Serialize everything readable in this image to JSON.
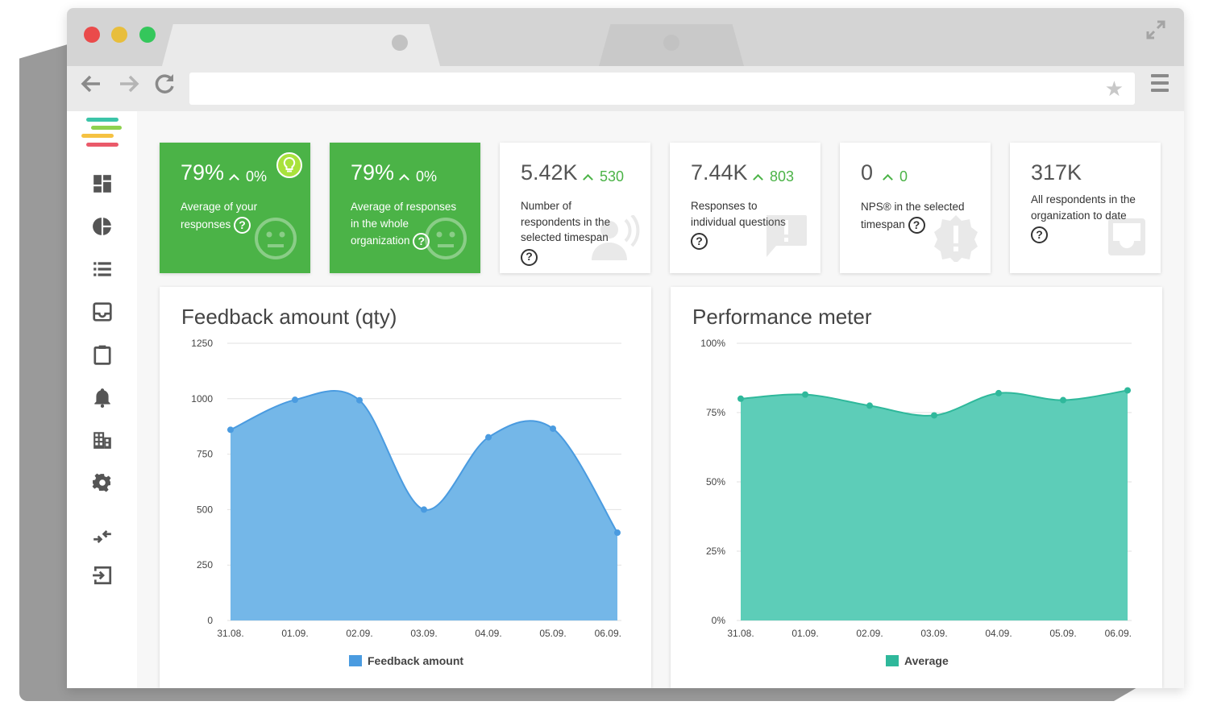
{
  "window": {
    "traffic_lights": [
      "red",
      "yellow",
      "green"
    ],
    "icons": {
      "expand": "expand-icon",
      "back": "arrow-left-icon",
      "forward": "arrow-right-icon",
      "reload": "reload-icon",
      "star": "star-icon",
      "menu": "hamburger-menu-icon"
    },
    "address_value": ""
  },
  "sidebar": {
    "logo_colors": [
      "#3cc4a8",
      "#8fd14f",
      "#f5c242",
      "#ea5a6a"
    ],
    "items": [
      {
        "icon": "dashboard-icon"
      },
      {
        "icon": "pie-chart-icon"
      },
      {
        "icon": "list-icon"
      },
      {
        "icon": "inbox-icon"
      },
      {
        "icon": "clipboard-icon"
      },
      {
        "icon": "bell-icon"
      },
      {
        "icon": "building-icon"
      },
      {
        "icon": "gear-icon"
      },
      {
        "icon": "compress-arrows-icon"
      },
      {
        "icon": "logout-icon"
      }
    ]
  },
  "stats": [
    {
      "value": "79%",
      "delta": "0%",
      "label_lines": [
        "Average of your",
        "responses"
      ],
      "style": "green",
      "icons": [
        "lightbulb-icon",
        "neutral-face-icon"
      ]
    },
    {
      "value": "79%",
      "delta": "0%",
      "label_lines": [
        "Average of responses",
        "in the whole",
        "organization"
      ],
      "style": "green",
      "icons": [
        "neutral-face-icon"
      ]
    },
    {
      "value": "5.42K",
      "delta": "530",
      "label_lines": [
        "Number of",
        "respondents in the",
        "selected timespan"
      ],
      "style": "white",
      "icons": [
        "respondent-icon"
      ]
    },
    {
      "value": "7.44K",
      "delta": "803",
      "label_lines": [
        "Responses to",
        "individual questions"
      ],
      "style": "white",
      "icons": [
        "speech-bubble-icon"
      ]
    },
    {
      "value": "0",
      "delta": "0",
      "label_lines": [
        "NPS® in the selected",
        "timespan"
      ],
      "style": "white",
      "icons": [
        "alert-badge-icon"
      ]
    },
    {
      "value": "317K",
      "delta": "",
      "label_lines": [
        "All respondents in the",
        "organization to date"
      ],
      "style": "white",
      "icons": [
        "inbox-icon"
      ]
    }
  ],
  "colors": {
    "green": "#4bb347",
    "blue_fill": "#74b7e8",
    "blue_line": "#4a9be0",
    "teal_fill": "#5dcdb8",
    "teal_line": "#2fb89b"
  },
  "chart_data": [
    {
      "type": "area",
      "title": "Feedback amount (qty)",
      "categories": [
        "31.08.",
        "01.09.",
        "02.09.",
        "03.09.",
        "04.09.",
        "05.09.",
        "06.09."
      ],
      "series": [
        {
          "name": "Feedback amount",
          "values": [
            860,
            995,
            993,
            500,
            826,
            865,
            396
          ]
        }
      ],
      "yticks": [
        "1250",
        "1000",
        "750",
        "500",
        "250",
        "0"
      ],
      "ylim": [
        0,
        1250
      ],
      "grid": true,
      "legend": "bottom-center"
    },
    {
      "type": "area",
      "title": "Performance meter",
      "categories": [
        "31.08.",
        "01.09.",
        "02.09.",
        "03.09.",
        "04.09.",
        "05.09.",
        "06.09."
      ],
      "series": [
        {
          "name": "Average",
          "values": [
            80,
            81.5,
            77.5,
            74,
            82,
            79.5,
            83
          ]
        }
      ],
      "yticks": [
        "100%",
        "75%",
        "50%",
        "25%",
        "0%"
      ],
      "ylim": [
        0,
        100
      ],
      "grid": true,
      "legend": "bottom-center"
    }
  ]
}
